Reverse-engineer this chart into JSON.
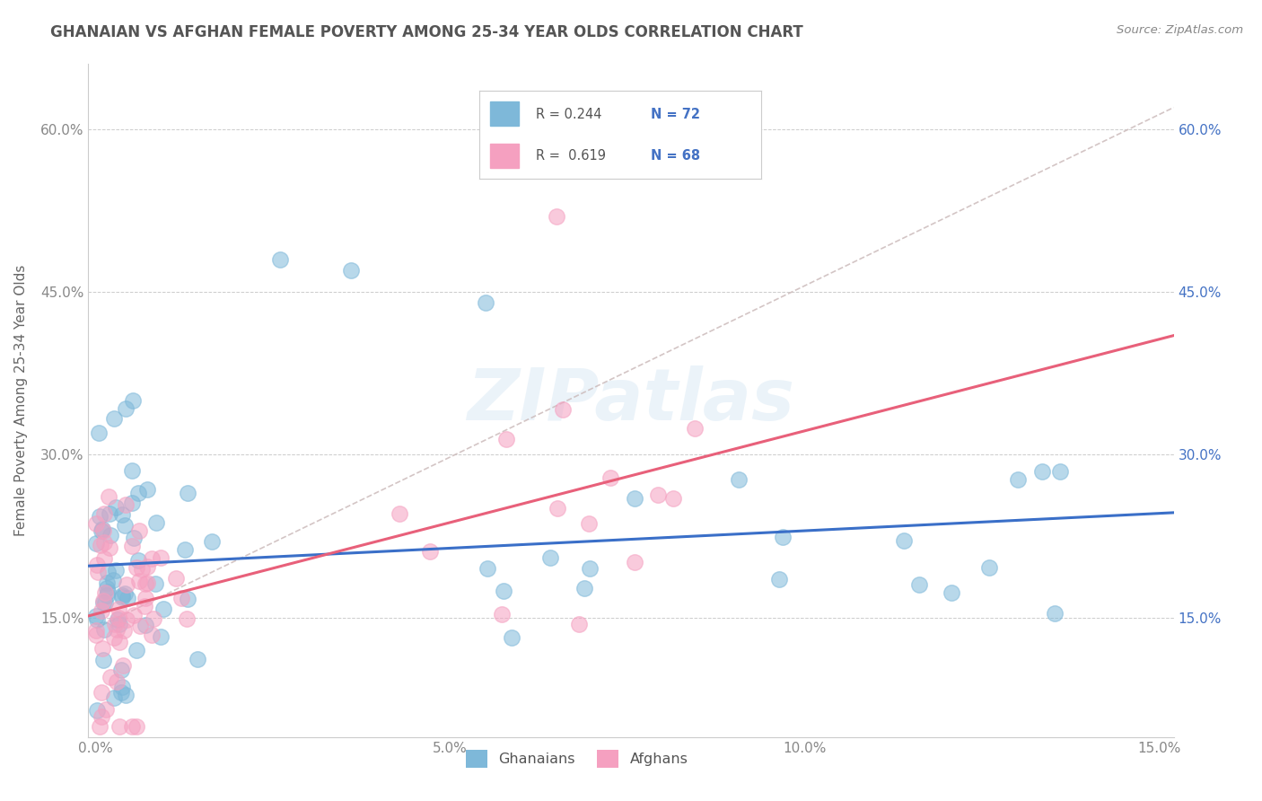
{
  "title": "GHANAIAN VS AFGHAN FEMALE POVERTY AMONG 25-34 YEAR OLDS CORRELATION CHART",
  "source": "Source: ZipAtlas.com",
  "ylabel": "Female Poverty Among 25-34 Year Olds",
  "xlim": [
    -0.001,
    0.152
  ],
  "ylim": [
    0.04,
    0.66
  ],
  "xticks": [
    0.0,
    0.05,
    0.1,
    0.15
  ],
  "xticklabels": [
    "0.0%",
    "5.0%",
    "10.0%",
    "15.0%"
  ],
  "yticks": [
    0.15,
    0.3,
    0.45,
    0.6
  ],
  "yticklabels": [
    "15.0%",
    "30.0%",
    "45.0%",
    "60.0%"
  ],
  "ghanaian_color": "#7eb8d9",
  "afghan_color": "#f5a0c0",
  "ghanaian_line_color": "#3a6fc8",
  "afghan_line_color": "#e8607a",
  "ghanaian_R": 0.244,
  "ghanaian_N": 72,
  "afghan_R": 0.619,
  "afghan_N": 68,
  "watermark": "ZIPatlas",
  "background_color": "#ffffff",
  "grid_color": "#cccccc",
  "title_color": "#555555",
  "label_color": "#666666",
  "tick_color": "#888888",
  "legend_value_color": "#4472c4",
  "legend_label_color": "#555555",
  "dashed_line_color": "#ccbbbb",
  "seed": 77
}
